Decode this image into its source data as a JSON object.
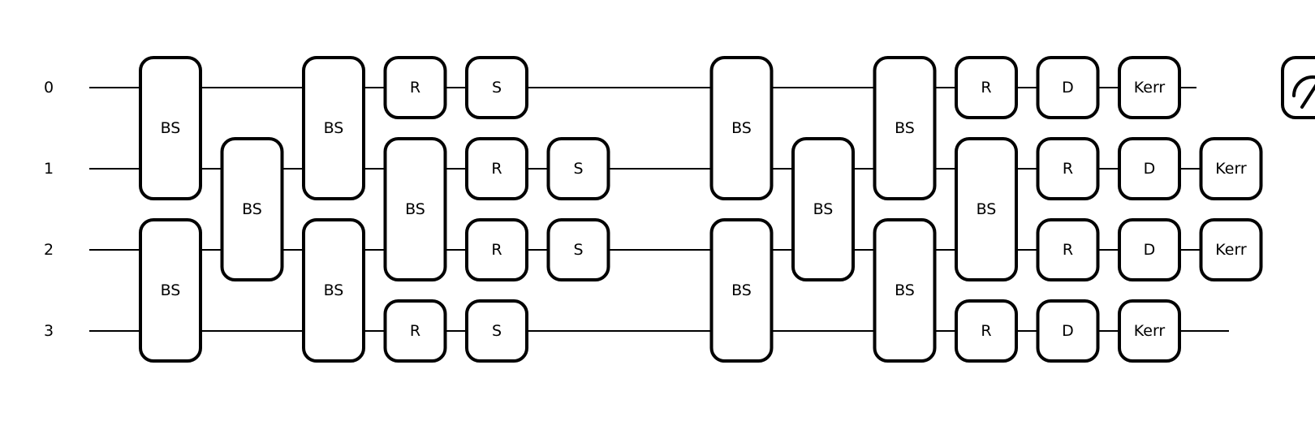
{
  "wires": [
    {
      "label": "0",
      "measured": true
    },
    {
      "label": "1",
      "measured": false
    },
    {
      "label": "2",
      "measured": false
    },
    {
      "label": "3",
      "measured": false
    }
  ],
  "columns": [
    [
      {
        "label": "BS",
        "wires": [
          0,
          1
        ]
      },
      {
        "label": "BS",
        "wires": [
          2,
          3
        ]
      }
    ],
    [
      {
        "label": "BS",
        "wires": [
          1,
          2
        ]
      }
    ],
    [
      {
        "label": "BS",
        "wires": [
          0,
          1
        ]
      },
      {
        "label": "BS",
        "wires": [
          2,
          3
        ]
      }
    ],
    [
      {
        "label": "R",
        "wires": [
          0
        ]
      },
      {
        "label": "BS",
        "wires": [
          1,
          2
        ]
      },
      {
        "label": "R",
        "wires": [
          3
        ]
      }
    ],
    [
      {
        "label": "S",
        "wires": [
          0
        ]
      },
      {
        "label": "R",
        "wires": [
          1
        ]
      },
      {
        "label": "R",
        "wires": [
          2
        ]
      },
      {
        "label": "S",
        "wires": [
          3
        ]
      }
    ],
    [
      {
        "label": "S",
        "wires": [
          1
        ]
      },
      {
        "label": "S",
        "wires": [
          2
        ]
      }
    ],
    [],
    [
      {
        "label": "BS",
        "wires": [
          0,
          1
        ]
      },
      {
        "label": "BS",
        "wires": [
          2,
          3
        ]
      }
    ],
    [
      {
        "label": "BS",
        "wires": [
          1,
          2
        ]
      }
    ],
    [
      {
        "label": "BS",
        "wires": [
          0,
          1
        ]
      },
      {
        "label": "BS",
        "wires": [
          2,
          3
        ]
      }
    ],
    [
      {
        "label": "R",
        "wires": [
          0
        ]
      },
      {
        "label": "BS",
        "wires": [
          1,
          2
        ]
      },
      {
        "label": "R",
        "wires": [
          3
        ]
      }
    ],
    [
      {
        "label": "D",
        "wires": [
          0
        ]
      },
      {
        "label": "R",
        "wires": [
          1
        ]
      },
      {
        "label": "R",
        "wires": [
          2
        ]
      },
      {
        "label": "D",
        "wires": [
          3
        ]
      }
    ],
    [
      {
        "label": "Kerr",
        "wires": [
          0
        ]
      },
      {
        "label": "D",
        "wires": [
          1
        ]
      },
      {
        "label": "D",
        "wires": [
          2
        ]
      },
      {
        "label": "Kerr",
        "wires": [
          3
        ]
      }
    ],
    [
      {
        "label": "Kerr",
        "wires": [
          1
        ]
      },
      {
        "label": "Kerr",
        "wires": [
          2
        ]
      }
    ],
    [
      {
        "label": "",
        "icon": "measure-icon",
        "wires": [
          0
        ]
      }
    ]
  ]
}
